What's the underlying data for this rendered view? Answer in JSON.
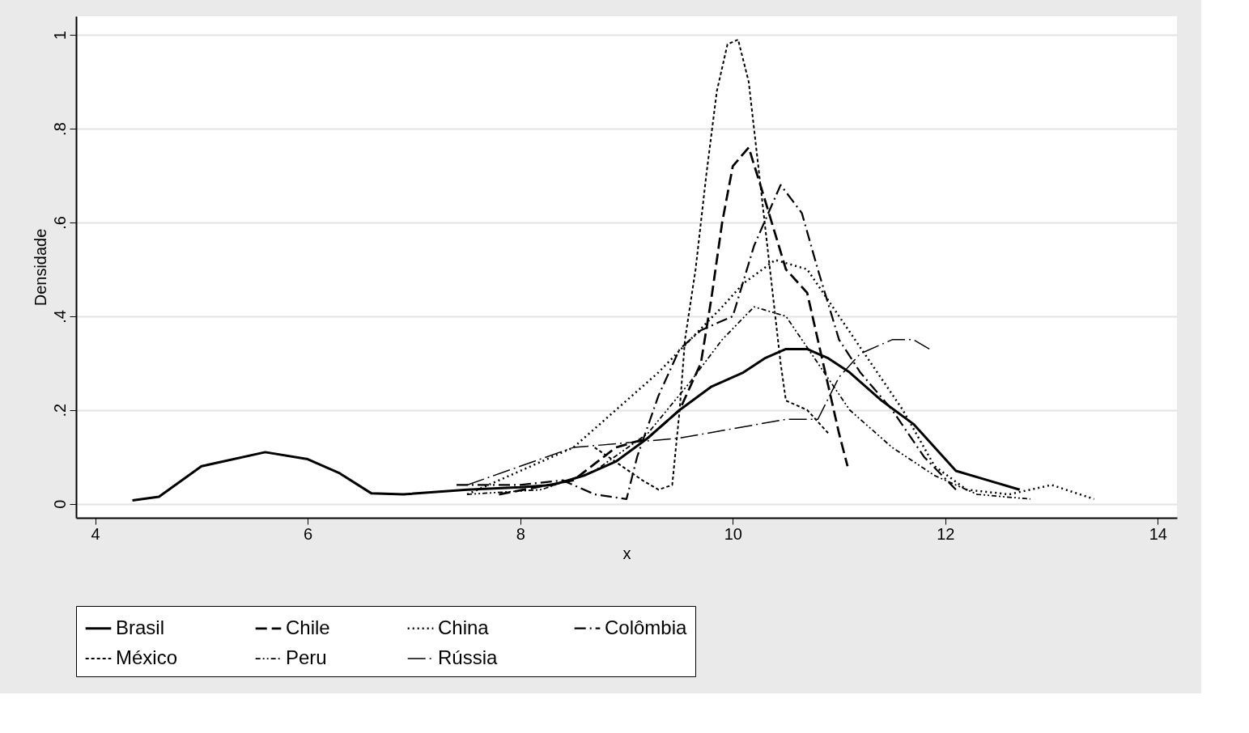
{
  "chart_data": {
    "type": "line",
    "xlabel": "x",
    "ylabel": "Densidade",
    "xlim": [
      3.82,
      14.18
    ],
    "ylim": [
      -0.03,
      1.04
    ],
    "xticks": [
      4,
      6,
      8,
      10,
      12,
      14
    ],
    "yticks": [
      0,
      {
        "value": 0.2,
        "label": ".2"
      },
      {
        "value": 0.4,
        "label": ".4"
      },
      {
        "value": 0.6,
        "label": ".6"
      },
      {
        "value": 0.8,
        "label": ".8"
      },
      1
    ],
    "grid": "y",
    "legend": "bottom",
    "marker": "none",
    "series": [
      {
        "name": "Brasil",
        "color": "#000000",
        "line_style": "solid",
        "x": [
          4.35,
          4.6,
          5.0,
          5.6,
          6.0,
          6.3,
          6.6,
          6.9,
          7.5,
          8.0,
          8.3,
          8.6,
          8.9,
          9.2,
          9.5,
          9.8,
          10.1,
          10.3,
          10.5,
          10.7,
          10.9,
          11.1,
          11.4,
          11.7,
          11.9,
          12.1,
          12.4,
          12.7
        ],
        "values": [
          0.007,
          0.015,
          0.08,
          0.11,
          0.095,
          0.065,
          0.022,
          0.02,
          0.03,
          0.035,
          0.04,
          0.06,
          0.09,
          0.14,
          0.2,
          0.25,
          0.28,
          0.31,
          0.33,
          0.33,
          0.31,
          0.28,
          0.22,
          0.17,
          0.12,
          0.07,
          0.05,
          0.03
        ]
      },
      {
        "name": "Chile",
        "color": "#000000",
        "line_style": "dashed",
        "x": [
          7.8,
          8.5,
          8.9,
          9.2,
          9.5,
          9.7,
          9.8,
          9.9,
          10.0,
          10.15,
          10.3,
          10.5,
          10.7,
          10.85,
          11.0,
          11.08
        ],
        "values": [
          0.02,
          0.05,
          0.12,
          0.14,
          0.2,
          0.3,
          0.44,
          0.6,
          0.72,
          0.76,
          0.65,
          0.5,
          0.45,
          0.3,
          0.15,
          0.08
        ]
      },
      {
        "name": "China",
        "color": "#000000",
        "line_style": "dotted",
        "x": [
          7.5,
          8.0,
          8.5,
          9.0,
          9.3,
          9.6,
          9.9,
          10.1,
          10.4,
          10.7,
          11.0,
          11.3,
          11.6,
          11.9,
          12.2,
          12.6,
          13.0,
          13.4
        ],
        "values": [
          0.02,
          0.07,
          0.12,
          0.22,
          0.28,
          0.35,
          0.42,
          0.47,
          0.52,
          0.5,
          0.4,
          0.3,
          0.2,
          0.08,
          0.03,
          0.02,
          0.04,
          0.01
        ]
      },
      {
        "name": "Colômbia",
        "color": "#000000",
        "line_style": "dashdot",
        "x": [
          7.4,
          8.0,
          8.4,
          8.7,
          9.0,
          9.1,
          9.3,
          9.5,
          9.7,
          10.0,
          10.2,
          10.45,
          10.65,
          10.8,
          11.0,
          11.2,
          11.5,
          11.8,
          12.1
        ],
        "values": [
          0.04,
          0.04,
          0.05,
          0.02,
          0.01,
          0.1,
          0.23,
          0.33,
          0.37,
          0.4,
          0.55,
          0.68,
          0.62,
          0.5,
          0.35,
          0.28,
          0.2,
          0.1,
          0.03
        ]
      },
      {
        "name": "México",
        "color": "#000000",
        "line_style": "shortdash",
        "x": [
          8.7,
          9.15,
          9.3,
          9.43,
          9.5,
          9.55,
          9.65,
          9.75,
          9.85,
          9.95,
          10.05,
          10.15,
          10.25,
          10.35,
          10.45,
          10.5,
          10.7,
          10.9
        ],
        "values": [
          0.12,
          0.05,
          0.03,
          0.04,
          0.2,
          0.35,
          0.5,
          0.7,
          0.88,
          0.98,
          0.99,
          0.9,
          0.7,
          0.5,
          0.3,
          0.22,
          0.2,
          0.15
        ]
      },
      {
        "name": "Peru",
        "color": "#000000",
        "line_style": "dashdotdot",
        "x": [
          7.5,
          8.2,
          8.7,
          9.2,
          9.6,
          9.9,
          10.2,
          10.5,
          10.8,
          11.1,
          11.5,
          11.9,
          12.3,
          12.8
        ],
        "values": [
          0.02,
          0.03,
          0.07,
          0.15,
          0.26,
          0.35,
          0.42,
          0.4,
          0.3,
          0.2,
          0.12,
          0.06,
          0.02,
          0.01
        ]
      },
      {
        "name": "Rússia",
        "color": "#000000",
        "line_style": "longdashdot",
        "x": [
          7.5,
          8.5,
          9.0,
          9.5,
          10.0,
          10.5,
          10.8,
          11.0,
          11.2,
          11.5,
          11.7,
          11.85
        ],
        "values": [
          0.04,
          0.12,
          0.13,
          0.14,
          0.16,
          0.18,
          0.18,
          0.27,
          0.32,
          0.35,
          0.35,
          0.33
        ]
      }
    ]
  }
}
